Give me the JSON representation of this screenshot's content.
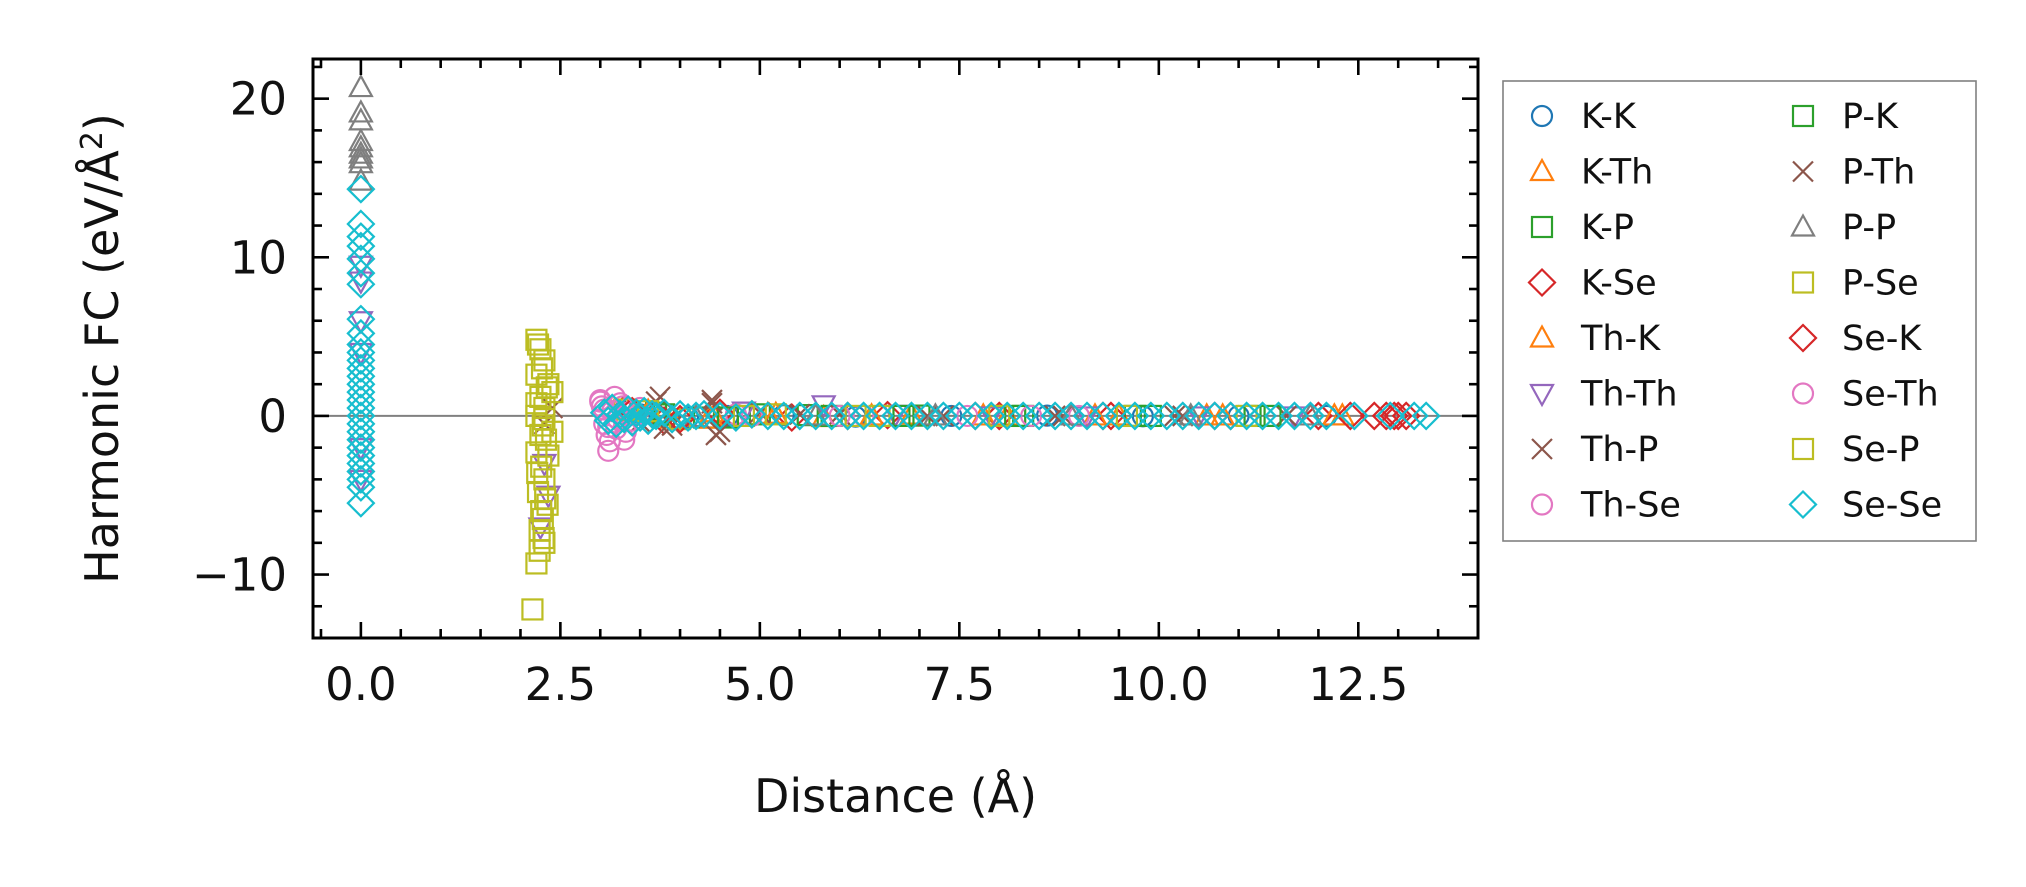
{
  "chart_data": {
    "type": "scatter",
    "xlabel": "Distance (Å)",
    "ylabel_prefix": "Harmonic FC (eV/Å",
    "ylabel_sup": "2",
    "ylabel_suffix": ")",
    "xlim": [
      -0.6,
      14.0
    ],
    "ylim": [
      -14,
      22.5
    ],
    "x_ticks": [
      0.0,
      2.5,
      5.0,
      7.5,
      10.0,
      12.5
    ],
    "x_tick_labels": [
      "0.0",
      "2.5",
      "5.0",
      "7.5",
      "10.0",
      "12.5"
    ],
    "y_ticks": [
      -10,
      0,
      10,
      20
    ],
    "y_tick_labels": [
      "−10",
      "0",
      "10",
      "20"
    ],
    "zero_line": true,
    "grid": false,
    "legend_position": "outside-right",
    "legend_columns": 2,
    "series": [
      {
        "name": "K-K",
        "marker": "circle",
        "color": "#1f77b4",
        "points": [
          [
            3.5,
            0.1
          ],
          [
            4.1,
            -0.1
          ],
          [
            4.6,
            0.0
          ],
          [
            5.3,
            0.05
          ],
          [
            6.2,
            -0.05
          ],
          [
            7.4,
            0.0
          ],
          [
            8.6,
            0.02
          ],
          [
            9.8,
            -0.02
          ],
          [
            11.0,
            0.0
          ],
          [
            12.1,
            0.0
          ]
        ]
      },
      {
        "name": "K-Th",
        "marker": "triangle-up",
        "color": "#ff7f0e",
        "points": [
          [
            3.6,
            0.3
          ],
          [
            3.9,
            -0.2
          ],
          [
            4.4,
            0.2
          ],
          [
            5.1,
            0.1
          ],
          [
            5.8,
            -0.1
          ],
          [
            6.9,
            0.05
          ],
          [
            8.1,
            0.0
          ],
          [
            9.5,
            0.0
          ],
          [
            10.8,
            0.0
          ],
          [
            12.3,
            0.0
          ]
        ]
      },
      {
        "name": "K-P",
        "marker": "square",
        "color": "#2ca02c",
        "points": [
          [
            3.7,
            0.2
          ],
          [
            4.3,
            -0.1
          ],
          [
            5.0,
            0.1
          ],
          [
            5.9,
            0.0
          ],
          [
            7.0,
            0.02
          ],
          [
            8.3,
            0.0
          ],
          [
            9.7,
            0.0
          ],
          [
            11.2,
            0.0
          ]
        ]
      },
      {
        "name": "K-Se",
        "marker": "diamond",
        "color": "#d62728",
        "points": [
          [
            3.3,
            0.4
          ],
          [
            3.8,
            -0.3
          ],
          [
            4.5,
            0.2
          ],
          [
            5.4,
            -0.1
          ],
          [
            6.6,
            0.05
          ],
          [
            8.0,
            0.0
          ],
          [
            9.4,
            0.0
          ],
          [
            10.9,
            0.0
          ],
          [
            12.0,
            0.0
          ],
          [
            12.7,
            0.0
          ],
          [
            12.95,
            0.0
          ],
          [
            13.1,
            0.0
          ]
        ]
      },
      {
        "name": "Th-K",
        "marker": "triangle-up",
        "color": "#ff7f0e",
        "points": [
          [
            3.6,
            0.2
          ],
          [
            4.4,
            -0.2
          ],
          [
            5.2,
            0.1
          ],
          [
            6.4,
            0.0
          ],
          [
            7.8,
            0.0
          ],
          [
            9.2,
            0.0
          ],
          [
            10.6,
            0.0
          ],
          [
            12.2,
            0.0
          ]
        ]
      },
      {
        "name": "Th-Th",
        "marker": "triangle-down",
        "color": "#9467bd",
        "points": [
          [
            0.0,
            9.5
          ],
          [
            0.0,
            8.5
          ],
          [
            0.0,
            6.0
          ],
          [
            0.0,
            4.0
          ],
          [
            0.0,
            -2.0
          ],
          [
            0.0,
            -4.0
          ],
          [
            2.3,
            -3.0
          ],
          [
            2.35,
            -5.0
          ],
          [
            2.25,
            -7.0
          ],
          [
            4.8,
            0.3
          ],
          [
            5.8,
            0.7
          ],
          [
            6.7,
            0.1
          ],
          [
            7.9,
            0.0
          ],
          [
            9.1,
            0.0
          ],
          [
            10.5,
            0.0
          ],
          [
            11.7,
            0.0
          ]
        ]
      },
      {
        "name": "Th-P",
        "marker": "x",
        "color": "#8c564b",
        "points": [
          [
            2.4,
            0.5
          ],
          [
            2.3,
            -0.5
          ],
          [
            3.2,
            0.3
          ],
          [
            3.5,
            -0.4
          ],
          [
            3.75,
            1.2
          ],
          [
            3.8,
            -0.8
          ],
          [
            4.4,
            1.0
          ],
          [
            4.45,
            -1.2
          ],
          [
            5.0,
            0.2
          ],
          [
            6.0,
            0.1
          ],
          [
            7.3,
            0.0
          ],
          [
            8.8,
            0.0
          ],
          [
            10.2,
            0.0
          ],
          [
            11.6,
            0.0
          ]
        ]
      },
      {
        "name": "Th-Se",
        "marker": "circle",
        "color": "#e377c2",
        "points": [
          [
            3.0,
            1.0
          ],
          [
            3.02,
            0.6
          ],
          [
            3.05,
            -0.5
          ],
          [
            3.08,
            -1.2
          ],
          [
            3.1,
            -2.2
          ],
          [
            3.15,
            0.3
          ],
          [
            3.2,
            -0.8
          ],
          [
            3.25,
            0.8
          ],
          [
            3.3,
            -1.5
          ],
          [
            3.35,
            0.2
          ],
          [
            3.4,
            -0.3
          ],
          [
            3.5,
            0.5
          ],
          [
            4.7,
            0.1
          ],
          [
            6.0,
            0.0
          ],
          [
            7.6,
            0.0
          ],
          [
            9.0,
            0.0
          ]
        ]
      },
      {
        "name": "P-K",
        "marker": "square",
        "color": "#2ca02c",
        "points": [
          [
            3.8,
            0.1
          ],
          [
            4.6,
            -0.1
          ],
          [
            5.6,
            0.05
          ],
          [
            6.8,
            0.0
          ],
          [
            8.2,
            0.0
          ],
          [
            9.9,
            0.0
          ],
          [
            11.4,
            0.0
          ]
        ]
      },
      {
        "name": "P-Th",
        "marker": "x",
        "color": "#8c564b",
        "points": [
          [
            3.7,
            0.9
          ],
          [
            3.9,
            -0.6
          ],
          [
            4.4,
            0.8
          ],
          [
            4.5,
            -1.0
          ],
          [
            5.5,
            0.1
          ],
          [
            7.1,
            0.0
          ],
          [
            8.7,
            0.0
          ],
          [
            10.3,
            0.0
          ]
        ]
      },
      {
        "name": "P-P",
        "marker": "triangle-up",
        "color": "#7f7f7f",
        "points": [
          [
            0.0,
            20.7
          ],
          [
            0.0,
            19.1
          ],
          [
            0.0,
            18.6
          ],
          [
            0.0,
            17.3
          ],
          [
            0.0,
            16.9
          ],
          [
            0.0,
            16.5
          ],
          [
            0.0,
            16.2
          ],
          [
            0.0,
            15.9
          ],
          [
            0.0,
            14.8
          ],
          [
            3.4,
            0.2
          ],
          [
            4.2,
            -0.1
          ],
          [
            5.7,
            0.0
          ],
          [
            7.2,
            0.0
          ],
          [
            8.9,
            0.0
          ],
          [
            10.4,
            0.0
          ],
          [
            11.9,
            0.0
          ]
        ]
      },
      {
        "name": "P-Se",
        "marker": "square",
        "color": "#bcbd22",
        "points": [
          [
            2.2,
            4.8
          ],
          [
            2.25,
            4.2
          ],
          [
            2.3,
            3.5
          ],
          [
            2.2,
            2.6
          ],
          [
            2.35,
            2.0
          ],
          [
            2.25,
            1.2
          ],
          [
            2.3,
            0.5
          ],
          [
            2.2,
            0.0
          ],
          [
            2.28,
            -0.6
          ],
          [
            2.32,
            -1.5
          ],
          [
            2.2,
            -2.3
          ],
          [
            2.26,
            -3.2
          ],
          [
            2.3,
            -4.0
          ],
          [
            2.22,
            -4.8
          ],
          [
            2.34,
            -5.6
          ],
          [
            2.28,
            -6.5
          ],
          [
            2.24,
            -7.2
          ],
          [
            2.3,
            -8.0
          ],
          [
            2.2,
            -9.3
          ],
          [
            2.15,
            -12.2
          ],
          [
            2.4,
            1.5
          ],
          [
            2.4,
            -1.0
          ],
          [
            3.3,
            0.4
          ],
          [
            4.0,
            -0.2
          ],
          [
            5.2,
            0.1
          ],
          [
            6.5,
            0.0
          ],
          [
            8.0,
            0.0
          ],
          [
            9.6,
            0.0
          ],
          [
            11.1,
            0.0
          ]
        ]
      },
      {
        "name": "Se-K",
        "marker": "diamond",
        "color": "#d62728",
        "points": [
          [
            3.4,
            0.3
          ],
          [
            4.0,
            -0.2
          ],
          [
            4.9,
            0.1
          ],
          [
            6.1,
            0.0
          ],
          [
            7.7,
            0.0
          ],
          [
            9.3,
            0.0
          ],
          [
            10.7,
            0.0
          ],
          [
            12.4,
            0.0
          ],
          [
            12.85,
            0.0
          ],
          [
            13.0,
            0.0
          ]
        ]
      },
      {
        "name": "Se-Th",
        "marker": "circle",
        "color": "#e377c2",
        "points": [
          [
            3.0,
            0.9
          ],
          [
            3.05,
            0.4
          ],
          [
            3.1,
            -0.7
          ],
          [
            3.12,
            -1.6
          ],
          [
            3.18,
            1.2
          ],
          [
            3.22,
            -0.2
          ],
          [
            3.28,
            0.6
          ],
          [
            3.32,
            -1.0
          ],
          [
            3.45,
            0.1
          ],
          [
            4.9,
            0.0
          ],
          [
            6.3,
            0.0
          ],
          [
            8.4,
            0.0
          ]
        ]
      },
      {
        "name": "Se-P",
        "marker": "square",
        "color": "#bcbd22",
        "points": [
          [
            2.22,
            4.5
          ],
          [
            2.27,
            3.0
          ],
          [
            2.33,
            1.8
          ],
          [
            2.2,
            0.8
          ],
          [
            2.3,
            -0.2
          ],
          [
            2.25,
            -1.2
          ],
          [
            2.35,
            -2.5
          ],
          [
            2.21,
            -3.6
          ],
          [
            2.31,
            -5.2
          ],
          [
            2.26,
            -6.0
          ],
          [
            2.29,
            -7.7
          ],
          [
            2.24,
            -8.5
          ],
          [
            3.6,
            0.3
          ],
          [
            4.8,
            0.0
          ],
          [
            6.2,
            0.0
          ]
        ]
      },
      {
        "name": "Se-Se",
        "marker": "diamond",
        "color": "#17becf",
        "points": [
          [
            0.0,
            14.3
          ],
          [
            0.0,
            12.1
          ],
          [
            0.0,
            11.3
          ],
          [
            0.0,
            10.7
          ],
          [
            0.0,
            9.9
          ],
          [
            0.0,
            9.0
          ],
          [
            0.0,
            8.3
          ],
          [
            0.0,
            6.1
          ],
          [
            0.0,
            5.2
          ],
          [
            0.0,
            4.5
          ],
          [
            0.0,
            4.0
          ],
          [
            0.0,
            3.5
          ],
          [
            0.0,
            3.0
          ],
          [
            0.0,
            2.5
          ],
          [
            0.0,
            2.0
          ],
          [
            0.0,
            1.5
          ],
          [
            0.0,
            1.0
          ],
          [
            0.0,
            0.5
          ],
          [
            0.0,
            0.0
          ],
          [
            0.0,
            -0.5
          ],
          [
            0.0,
            -1.0
          ],
          [
            0.0,
            -1.5
          ],
          [
            0.0,
            -2.0
          ],
          [
            0.0,
            -2.5
          ],
          [
            0.0,
            -3.0
          ],
          [
            0.0,
            -3.5
          ],
          [
            0.0,
            -4.0
          ],
          [
            0.0,
            -4.5
          ],
          [
            0.0,
            -5.5
          ],
          [
            3.05,
            0.2
          ],
          [
            3.1,
            -0.3
          ],
          [
            3.15,
            0.5
          ],
          [
            3.2,
            -0.5
          ],
          [
            3.25,
            0.1
          ],
          [
            3.3,
            -0.2
          ],
          [
            3.35,
            0.4
          ],
          [
            3.4,
            -0.4
          ],
          [
            3.45,
            0.2
          ],
          [
            3.5,
            -0.1
          ],
          [
            3.55,
            0.3
          ],
          [
            3.6,
            -0.3
          ],
          [
            3.65,
            0.1
          ],
          [
            3.7,
            0.0
          ],
          [
            3.8,
            0.2
          ],
          [
            3.9,
            -0.2
          ],
          [
            4.0,
            0.1
          ],
          [
            4.1,
            -0.1
          ],
          [
            4.2,
            0.0
          ],
          [
            4.3,
            0.1
          ],
          [
            4.5,
            0.0
          ],
          [
            4.7,
            -0.1
          ],
          [
            4.9,
            0.1
          ],
          [
            5.1,
            0.0
          ],
          [
            5.3,
            0.0
          ],
          [
            5.5,
            0.0
          ],
          [
            5.7,
            0.0
          ],
          [
            5.9,
            0.0
          ],
          [
            6.1,
            0.0
          ],
          [
            6.3,
            0.0
          ],
          [
            6.5,
            0.0
          ],
          [
            6.7,
            0.0
          ],
          [
            6.9,
            0.0
          ],
          [
            7.1,
            0.0
          ],
          [
            7.3,
            0.0
          ],
          [
            7.5,
            0.0
          ],
          [
            7.7,
            0.0
          ],
          [
            7.9,
            0.0
          ],
          [
            8.1,
            0.0
          ],
          [
            8.3,
            0.0
          ],
          [
            8.5,
            0.0
          ],
          [
            8.7,
            0.0
          ],
          [
            8.9,
            0.0
          ],
          [
            9.1,
            0.0
          ],
          [
            9.3,
            0.0
          ],
          [
            9.5,
            0.0
          ],
          [
            9.7,
            0.0
          ],
          [
            9.9,
            0.0
          ],
          [
            10.1,
            0.0
          ],
          [
            10.3,
            0.0
          ],
          [
            10.5,
            0.0
          ],
          [
            10.7,
            0.0
          ],
          [
            10.9,
            0.0
          ],
          [
            11.1,
            0.0
          ],
          [
            11.3,
            0.0
          ],
          [
            11.5,
            0.0
          ],
          [
            11.7,
            0.0
          ],
          [
            11.9,
            0.0
          ],
          [
            12.1,
            0.0
          ],
          [
            12.45,
            0.0
          ],
          [
            12.9,
            0.0
          ],
          [
            13.2,
            0.0
          ],
          [
            13.35,
            0.0
          ]
        ]
      }
    ]
  }
}
